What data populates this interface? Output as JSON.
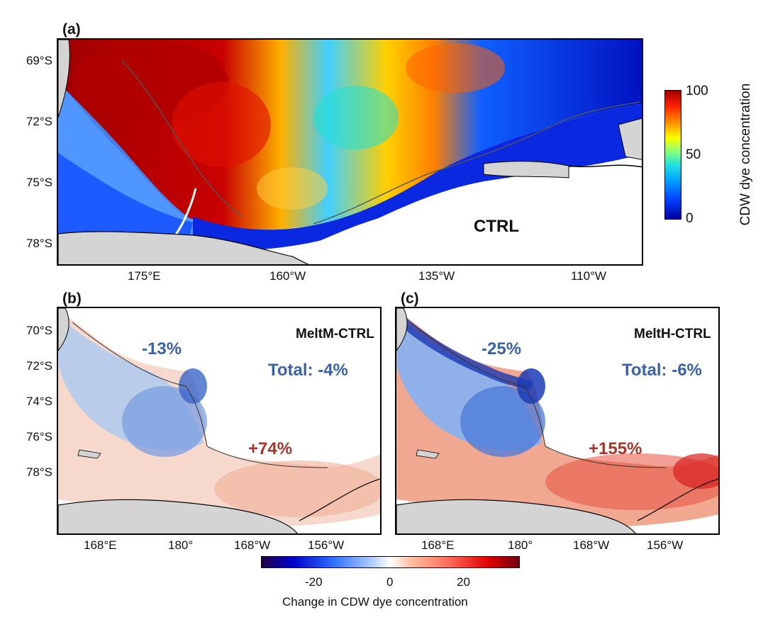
{
  "panel_a": {
    "label": "(a)",
    "run_label": "CTRL",
    "y_ticks": [
      "69°S",
      "72°S",
      "75°S",
      "78°S"
    ],
    "x_ticks": [
      "175°E",
      "160°W",
      "135°W",
      "110°W"
    ]
  },
  "panel_b": {
    "label": "(b)",
    "run_label": "MeltM-CTRL",
    "change_west": "-13%",
    "change_total": "Total: -4%",
    "change_east": "+74%",
    "y_ticks": [
      "70°S",
      "72°S",
      "74°S",
      "76°S",
      "78°S"
    ],
    "x_ticks": [
      "168°E",
      "180°",
      "168°W",
      "156°W"
    ]
  },
  "panel_c": {
    "label": "(c)",
    "run_label": "MeltH-CTRL",
    "change_west": "-25%",
    "change_total": "Total: -6%",
    "change_east": "+155%",
    "x_ticks": [
      "168°E",
      "180°",
      "168°W",
      "156°W"
    ]
  },
  "colorbar_top": {
    "label": "CDW dye concentration",
    "ticks": [
      "100",
      "50",
      "0"
    ]
  },
  "colorbar_bottom": {
    "label": "Change in CDW dye concentration",
    "ticks": [
      "-20",
      "0",
      "20"
    ]
  },
  "colors": {
    "negative_text": "#3a62a8",
    "positive_text": "#a8352a",
    "land": "#d4d4d4"
  }
}
